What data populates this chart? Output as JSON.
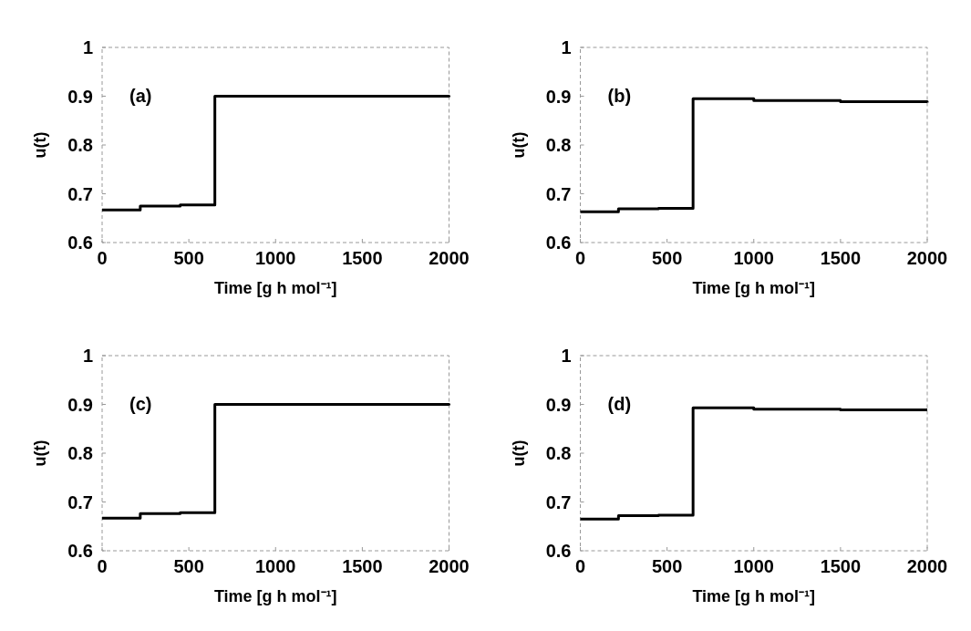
{
  "chart_data": [
    {
      "type": "step",
      "xlabel": "Time [g h mol⁻¹]",
      "ylabel": "u(t)",
      "annotations": [
        "(a)"
      ],
      "x": [
        0,
        220,
        450,
        650,
        1000,
        1500,
        2000
      ],
      "series": [
        {
          "color": "#000000",
          "values": [
            0.667,
            0.675,
            0.677,
            0.9,
            0.9,
            0.9,
            0.898
          ]
        }
      ],
      "xlim": [
        0,
        2000
      ],
      "xticks": [
        0,
        500,
        1000,
        1500,
        2000
      ],
      "ylim": [
        0.6,
        1
      ],
      "yticks": [
        0.6,
        0.7,
        0.8,
        0.9,
        1
      ]
    },
    {
      "type": "step",
      "xlabel": "Time [g h mol⁻¹]",
      "ylabel": "u(t)",
      "annotations": [
        "(b)"
      ],
      "x": [
        0,
        220,
        450,
        650,
        1000,
        1500,
        2000
      ],
      "series": [
        {
          "color": "#000000",
          "values": [
            0.663,
            0.669,
            0.67,
            0.895,
            0.891,
            0.889,
            0.887
          ]
        }
      ],
      "xlim": [
        0,
        2000
      ],
      "xticks": [
        0,
        500,
        1000,
        1500,
        2000
      ],
      "ylim": [
        0.6,
        1
      ],
      "yticks": [
        0.6,
        0.7,
        0.8,
        0.9,
        1
      ]
    },
    {
      "type": "step",
      "xlabel": "Time [g h mol⁻¹]",
      "ylabel": "u(t)",
      "annotations": [
        "(c)"
      ],
      "x": [
        0,
        220,
        450,
        650,
        1000,
        1500,
        2000
      ],
      "series": [
        {
          "color": "#000000",
          "values": [
            0.667,
            0.676,
            0.678,
            0.9,
            0.9,
            0.9,
            0.898
          ]
        }
      ],
      "xlim": [
        0,
        2000
      ],
      "xticks": [
        0,
        500,
        1000,
        1500,
        2000
      ],
      "ylim": [
        0.6,
        1
      ],
      "yticks": [
        0.6,
        0.7,
        0.8,
        0.9,
        1
      ]
    },
    {
      "type": "step",
      "xlabel": "Time [g h mol⁻¹]",
      "ylabel": "u(t)",
      "annotations": [
        "(d)"
      ],
      "x": [
        0,
        220,
        450,
        650,
        1000,
        1500,
        2000
      ],
      "series": [
        {
          "color": "#000000",
          "values": [
            0.665,
            0.672,
            0.673,
            0.893,
            0.89,
            0.889,
            0.889
          ]
        }
      ],
      "xlim": [
        0,
        2000
      ],
      "xticks": [
        0,
        500,
        1000,
        1500,
        2000
      ],
      "ylim": [
        0.6,
        1
      ],
      "yticks": [
        0.6,
        0.7,
        0.8,
        0.9,
        1
      ]
    }
  ]
}
